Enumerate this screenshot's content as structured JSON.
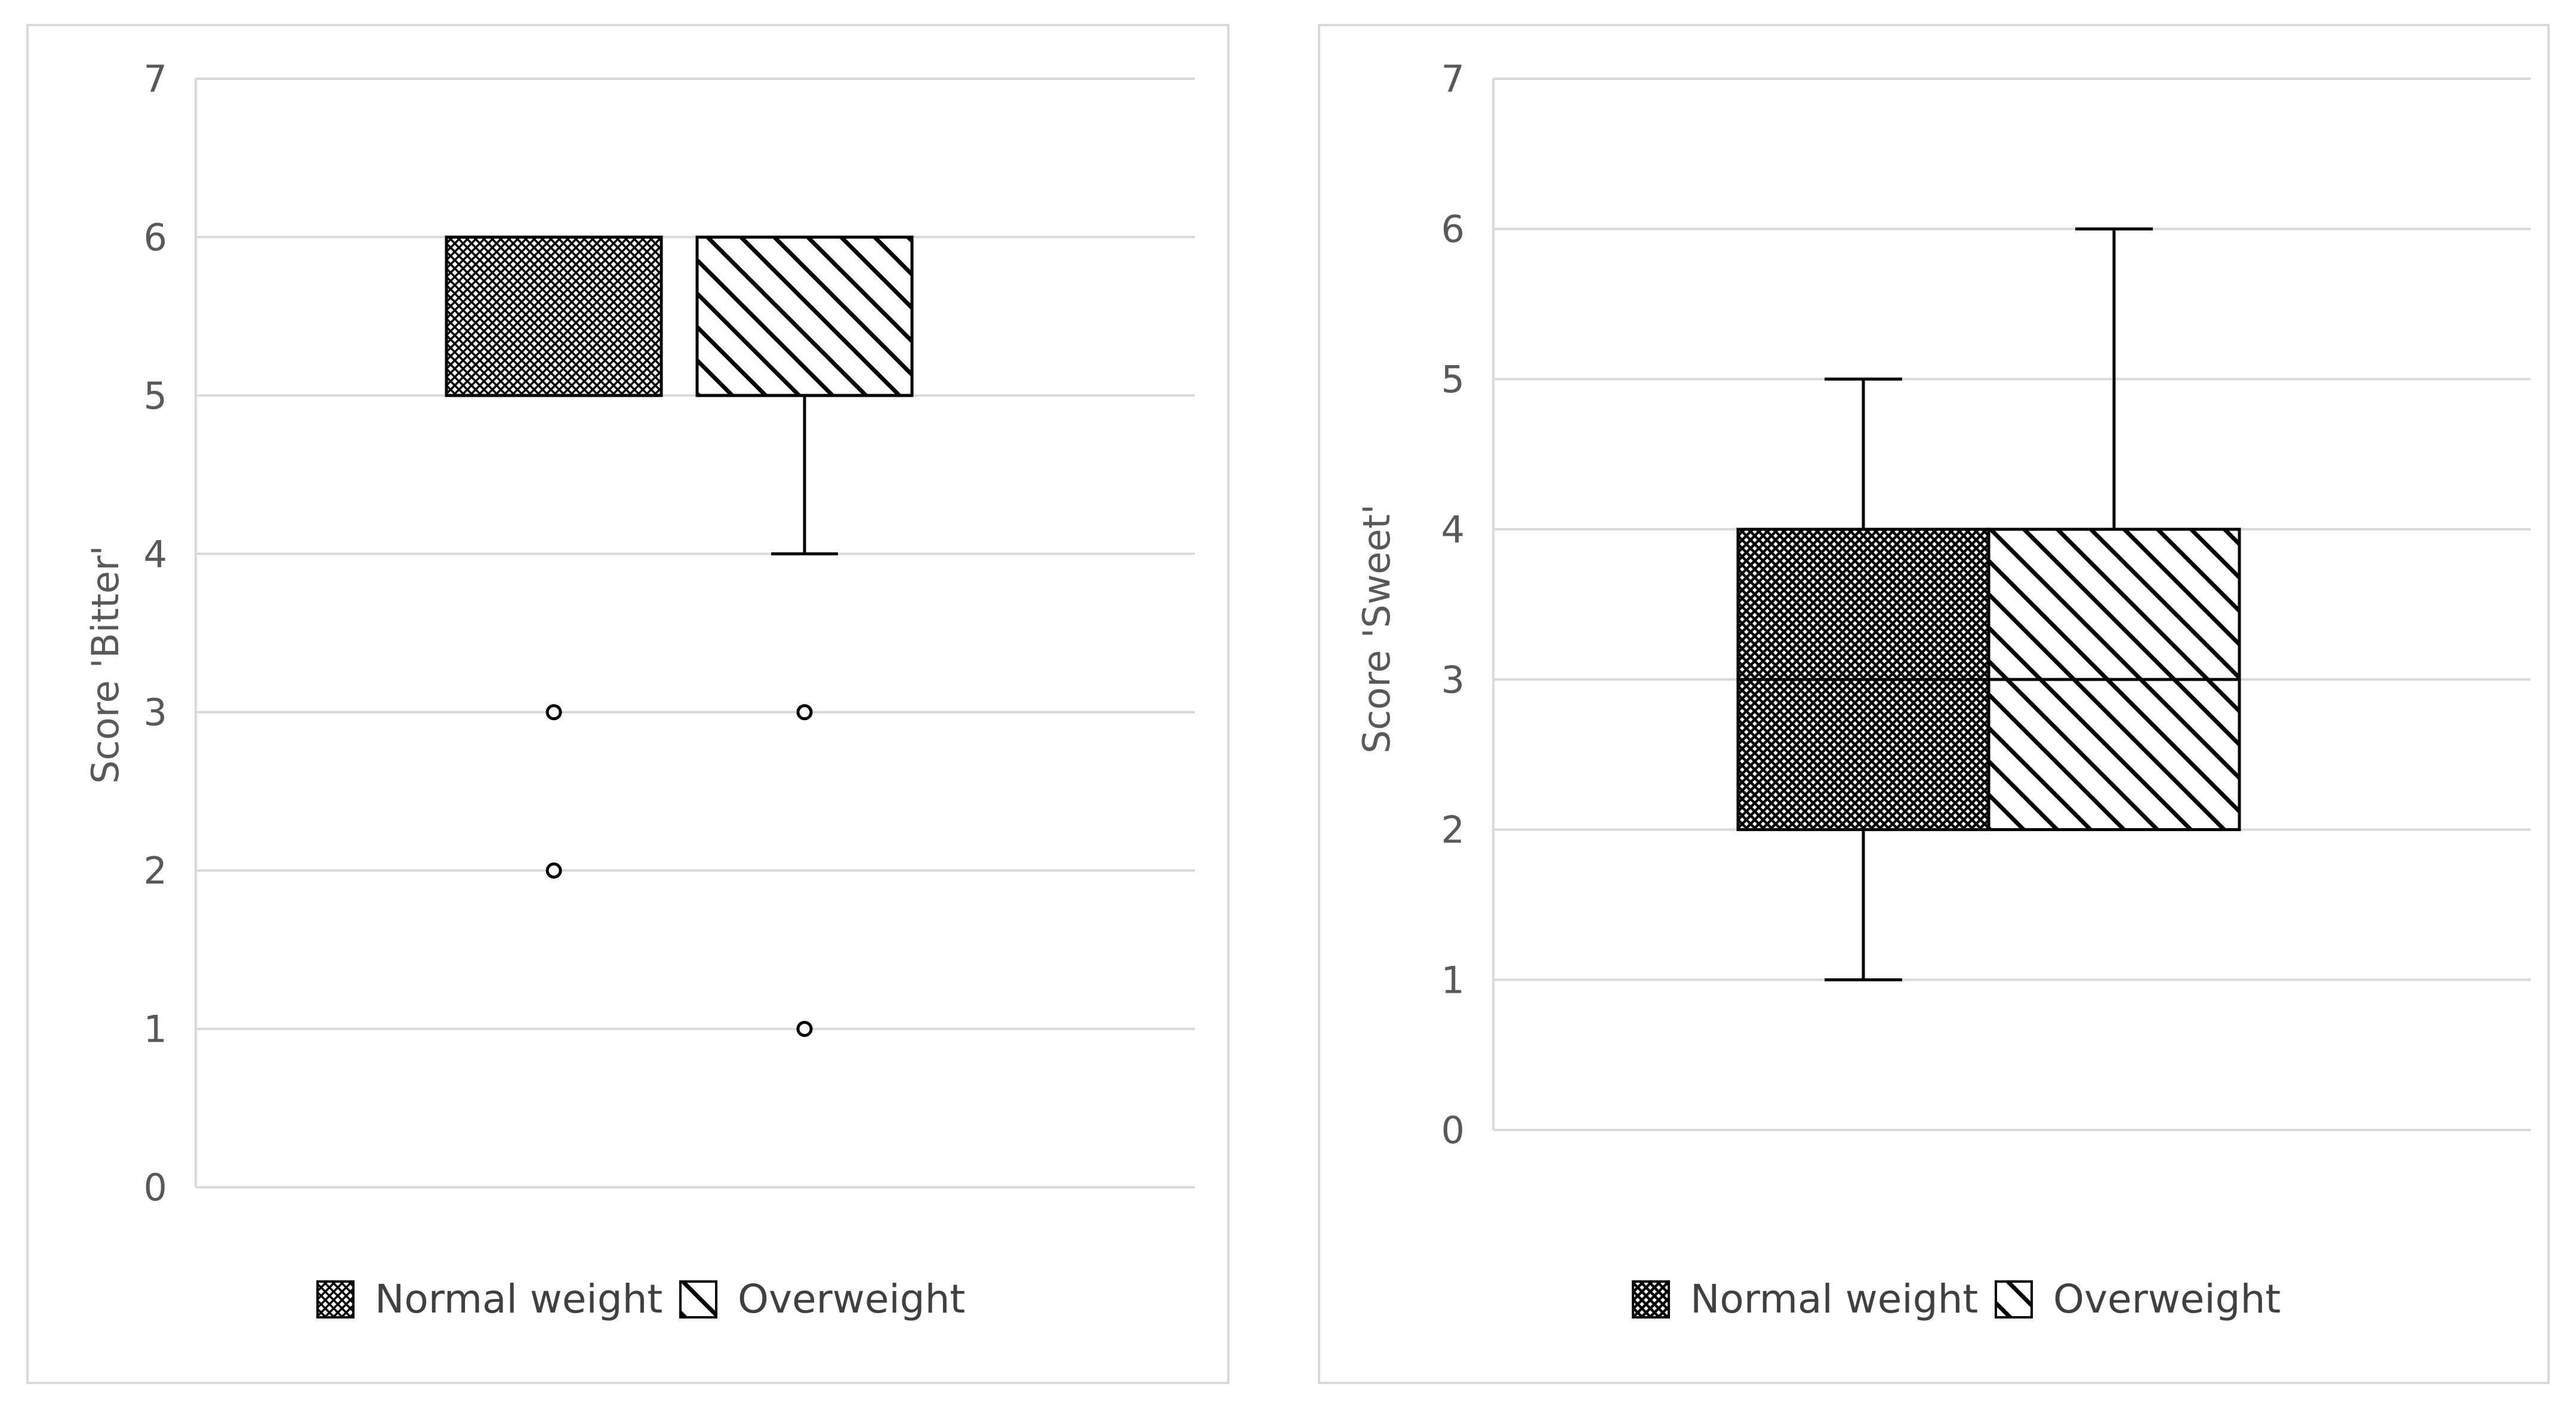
{
  "charts": [
    {
      "legend": {
        "items": [
          {
            "label": "Normal weight",
            "pattern": "crosshatch"
          },
          {
            "label": "Overweight",
            "pattern": "diagonal"
          }
        ]
      },
      "chart_data": {
        "type": "box",
        "ylabel": "Score 'Bitter'",
        "ylim": [
          0,
          7
        ],
        "yticks": [
          0,
          1,
          2,
          3,
          4,
          5,
          6,
          7
        ],
        "grid": true,
        "legend_position": "bottom",
        "series": [
          {
            "name": "Normal weight",
            "q1": 5,
            "median": 5,
            "q3": 6,
            "whisker_low": 5,
            "whisker_high": 6,
            "outliers": [
              3,
              2
            ]
          },
          {
            "name": "Overweight",
            "q1": 5,
            "median": 5,
            "q3": 6,
            "whisker_low": 4,
            "whisker_high": 6,
            "outliers": [
              3,
              1
            ]
          }
        ]
      }
    },
    {
      "legend": {
        "items": [
          {
            "label": "Normal weight",
            "pattern": "crosshatch"
          },
          {
            "label": "Overweight",
            "pattern": "diagonal"
          }
        ]
      },
      "chart_data": {
        "type": "box",
        "ylabel": "Score 'Sweet'",
        "ylim": [
          0,
          7
        ],
        "yticks": [
          0,
          1,
          2,
          3,
          4,
          5,
          6,
          7
        ],
        "grid": true,
        "legend_position": "bottom",
        "series": [
          {
            "name": "Normal weight",
            "q1": 2,
            "median": 3,
            "q3": 4,
            "whisker_low": 1,
            "whisker_high": 5,
            "outliers": []
          },
          {
            "name": "Overweight",
            "q1": 2,
            "median": 3,
            "q3": 4,
            "whisker_low": 2,
            "whisker_high": 6,
            "outliers": []
          }
        ]
      }
    }
  ]
}
